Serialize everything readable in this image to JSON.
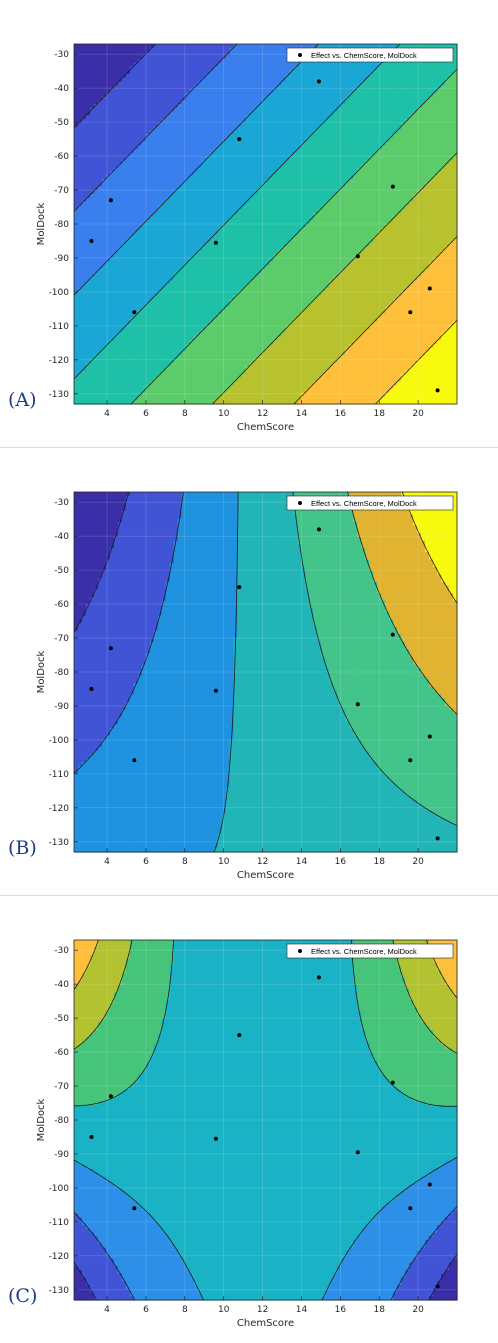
{
  "chart_data": [
    {
      "type": "contour",
      "panel_label": "(A)",
      "xlabel": "ChemScore",
      "ylabel": "MolDock",
      "xlim": [
        2.3,
        22
      ],
      "ylim": [
        -133,
        -27
      ],
      "xticks": [
        4,
        6,
        8,
        10,
        12,
        14,
        16,
        18,
        20
      ],
      "yticks": [
        -30,
        -40,
        -50,
        -60,
        -70,
        -80,
        -90,
        -100,
        -110,
        -120,
        -130
      ],
      "grid": true,
      "legend": {
        "label": "Effect vs. ChemScore, MolDock",
        "location": "top-right"
      },
      "colormap": [
        "#3a2fa8",
        "#4154d6",
        "#3a7fee",
        "#1ba7d6",
        "#1fc0a8",
        "#5ccc6b",
        "#b8c22e",
        "#fec03a",
        "#f8fa0d"
      ],
      "surface_model": "linear",
      "points": [
        {
          "x": 3.2,
          "y": -85
        },
        {
          "x": 4.2,
          "y": -73
        },
        {
          "x": 5.4,
          "y": -106
        },
        {
          "x": 9.6,
          "y": -85.5
        },
        {
          "x": 10.8,
          "y": -55
        },
        {
          "x": 14.9,
          "y": -38
        },
        {
          "x": 16.9,
          "y": -89.5
        },
        {
          "x": 18.7,
          "y": -69
        },
        {
          "x": 19.6,
          "y": -106
        },
        {
          "x": 20.6,
          "y": -99
        },
        {
          "x": 21.0,
          "y": -129
        }
      ]
    },
    {
      "type": "contour",
      "panel_label": "(B)",
      "xlabel": "ChemScore",
      "ylabel": "MolDock",
      "xlim": [
        2.3,
        22
      ],
      "ylim": [
        -133,
        -27
      ],
      "xticks": [
        4,
        6,
        8,
        10,
        12,
        14,
        16,
        18,
        20
      ],
      "yticks": [
        -30,
        -40,
        -50,
        -60,
        -70,
        -80,
        -90,
        -100,
        -110,
        -120,
        -130
      ],
      "grid": true,
      "legend": {
        "label": "Effect vs. ChemScore, MolDock",
        "location": "top-right"
      },
      "colormap": [
        "#3a2fa8",
        "#4154d6",
        "#1f92e0",
        "#22b5b8",
        "#43c48a",
        "#e0b330",
        "#f8fa0d"
      ],
      "surface_model": "interaction",
      "points": [
        {
          "x": 3.2,
          "y": -85
        },
        {
          "x": 4.2,
          "y": -73
        },
        {
          "x": 5.4,
          "y": -106
        },
        {
          "x": 9.6,
          "y": -85.5
        },
        {
          "x": 10.8,
          "y": -55
        },
        {
          "x": 14.9,
          "y": -38
        },
        {
          "x": 16.9,
          "y": -89.5
        },
        {
          "x": 18.7,
          "y": -69
        },
        {
          "x": 19.6,
          "y": -106
        },
        {
          "x": 20.6,
          "y": -99
        },
        {
          "x": 21.0,
          "y": -129
        }
      ]
    },
    {
      "type": "contour",
      "panel_label": "(C)",
      "xlabel": "ChemScore",
      "ylabel": "MolDock",
      "xlim": [
        2.3,
        22
      ],
      "ylim": [
        -133,
        -27
      ],
      "xticks": [
        4,
        6,
        8,
        10,
        12,
        14,
        16,
        18,
        20
      ],
      "yticks": [
        -30,
        -40,
        -50,
        -60,
        -70,
        -80,
        -90,
        -100,
        -110,
        -120,
        -130
      ],
      "grid": true,
      "legend": {
        "label": "Effect vs. ChemScore, MolDock",
        "location": "top-right"
      },
      "colormap": [
        "#3a2fa8",
        "#4154d6",
        "#2d8fe8",
        "#1ab3c6",
        "#46c57a",
        "#b3c230",
        "#fec03a"
      ],
      "surface_model": "saddle",
      "points": [
        {
          "x": 3.2,
          "y": -85
        },
        {
          "x": 4.2,
          "y": -73
        },
        {
          "x": 5.4,
          "y": -106
        },
        {
          "x": 9.6,
          "y": -85.5
        },
        {
          "x": 10.8,
          "y": -55
        },
        {
          "x": 14.9,
          "y": -38
        },
        {
          "x": 16.9,
          "y": -89.5
        },
        {
          "x": 18.7,
          "y": -69
        },
        {
          "x": 19.6,
          "y": -106
        },
        {
          "x": 20.6,
          "y": -99
        },
        {
          "x": 21.0,
          "y": -129
        }
      ]
    }
  ]
}
